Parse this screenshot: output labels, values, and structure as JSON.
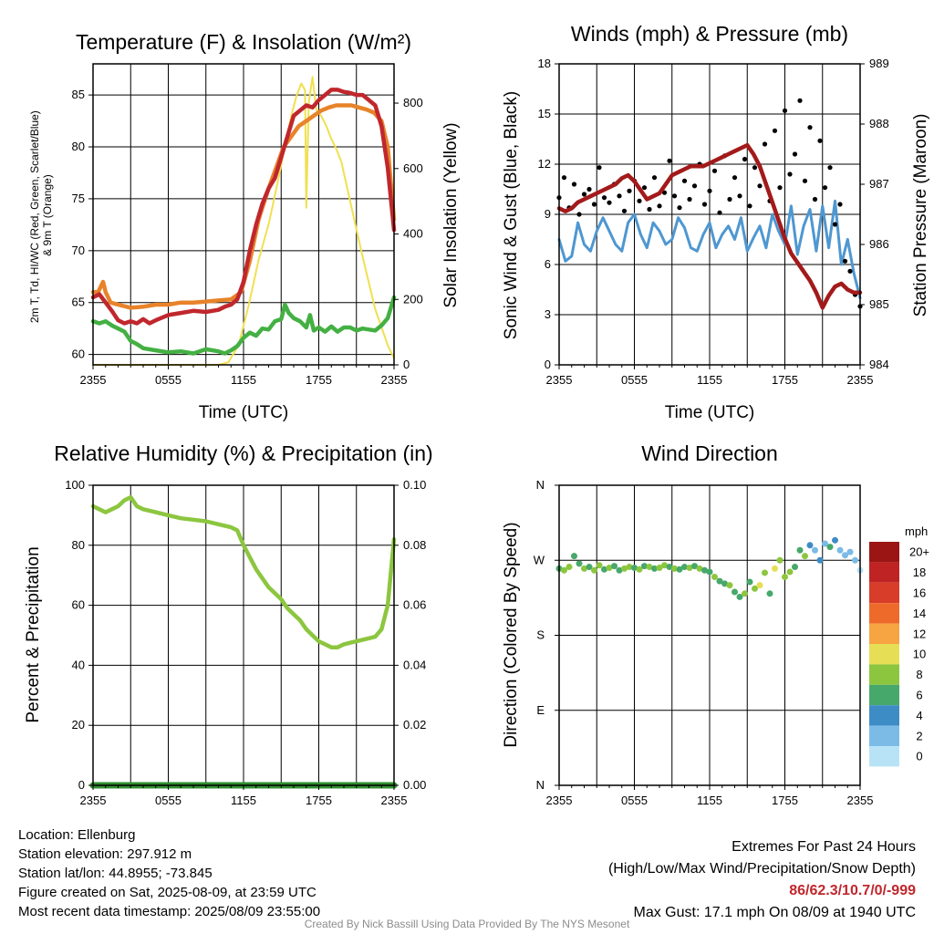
{
  "chart_data": [
    {
      "id": "temp",
      "type": "line",
      "title": "Temperature (F) & Insolation (W/m²)",
      "xlabel": "Time (UTC)",
      "ylabel_lines": [
        "2m T, Td, HI/WC (Red, Green, Scarlet/Blue)",
        "& 9m T (Orange)"
      ],
      "y2label": "Solar Insolation (Yellow)",
      "x_ticks": [
        "2355",
        "0555",
        "1155",
        "1755",
        "2355"
      ],
      "ylim": [
        59,
        88
      ],
      "y_ticks": [
        60,
        65,
        70,
        75,
        80,
        85
      ],
      "y2lim": [
        0,
        920
      ],
      "y2_ticks": [
        0,
        200,
        400,
        600,
        800
      ],
      "grid": true,
      "series": [
        {
          "color": "#f0e050",
          "axis": "right",
          "x": [
            0,
            2,
            4,
            6,
            8,
            10,
            10.8,
            11.6,
            12.4,
            13.2,
            14,
            14.4,
            15,
            15.4,
            15.8,
            16.2,
            16.6,
            16.9,
            17,
            17.2,
            17.5,
            17.8,
            18.2,
            18.6,
            19,
            19.4,
            19.8,
            20.5,
            21.5,
            22.5,
            23.5,
            24
          ],
          "values": [
            0,
            0,
            0,
            0,
            0,
            0,
            8,
            60,
            180,
            320,
            430,
            500,
            610,
            690,
            760,
            820,
            860,
            840,
            480,
            800,
            880,
            780,
            760,
            730,
            690,
            660,
            620,
            500,
            330,
            170,
            60,
            20
          ]
        },
        {
          "color": "#e8832a",
          "axis": "left",
          "x": [
            0,
            0.4,
            0.8,
            1,
            1.4,
            2,
            3,
            4,
            5,
            6,
            7,
            8,
            9,
            10,
            11,
            11.8,
            12.5,
            13.2,
            14,
            14.6,
            15.2,
            15.8,
            16.4,
            17,
            17.6,
            18.2,
            18.8,
            19.4,
            20,
            20.6,
            21.2,
            21.8,
            22.4,
            23,
            23.5,
            24
          ],
          "values": [
            66,
            66,
            67,
            66,
            65,
            64.8,
            64.5,
            64.6,
            64.8,
            64.8,
            65,
            65,
            65.1,
            65.2,
            65.3,
            66,
            69,
            73,
            76,
            78,
            80,
            81,
            82,
            82.5,
            83,
            83.5,
            83.8,
            84,
            84,
            84,
            83.8,
            83.6,
            83.3,
            82.5,
            80,
            73
          ]
        },
        {
          "color": "#c0272d",
          "axis": "left",
          "x": [
            0,
            0.5,
            1,
            1.5,
            2,
            2.5,
            3,
            3.5,
            4,
            4.5,
            5,
            6,
            7,
            8,
            9,
            10,
            10.5,
            11,
            11.5,
            12,
            12.5,
            13,
            13.5,
            14,
            14.5,
            15,
            15.5,
            16,
            16.5,
            17,
            17.5,
            18,
            18.5,
            19,
            19.5,
            20,
            20.5,
            21,
            21.5,
            22,
            22.5,
            23,
            23.5,
            24
          ],
          "values": [
            65.5,
            65.8,
            65,
            64.2,
            63.3,
            63,
            63.2,
            63,
            63.4,
            63,
            63.3,
            63.8,
            64,
            64.2,
            64.1,
            64.3,
            64.6,
            64.8,
            65.3,
            67,
            70,
            72.5,
            74.5,
            76,
            77,
            79,
            81,
            83,
            83.5,
            84,
            83.8,
            84.5,
            85,
            85.5,
            85.5,
            85.3,
            85.2,
            85,
            85,
            84.5,
            84,
            82,
            78,
            72
          ]
        },
        {
          "color": "#44b043",
          "axis": "left",
          "x": [
            0,
            0.5,
            1,
            1.5,
            2,
            2.5,
            3,
            3.5,
            4,
            5,
            6,
            7,
            8,
            9,
            10,
            10.5,
            11,
            11.5,
            12,
            12.5,
            13,
            13.5,
            14,
            14.5,
            15,
            15.3,
            15.6,
            16,
            16.5,
            17,
            17.3,
            17.6,
            18,
            18.5,
            19,
            19.5,
            20,
            20.5,
            21,
            21.5,
            22,
            22.5,
            23,
            23.5,
            24
          ],
          "values": [
            63.2,
            63,
            63.2,
            62.8,
            62.5,
            62.2,
            61.3,
            61,
            60.6,
            60.4,
            60.2,
            60.3,
            60.1,
            60.5,
            60.3,
            60.1,
            60.4,
            60.8,
            61.6,
            62.1,
            61.8,
            62.5,
            62.4,
            63.2,
            63.4,
            64.8,
            64,
            63.5,
            63.2,
            62.6,
            63.8,
            62.3,
            62.6,
            62.2,
            62.7,
            62.2,
            62.6,
            62.6,
            62.3,
            62.5,
            62.4,
            62.3,
            62.8,
            63.5,
            65.5
          ]
        }
      ]
    },
    {
      "id": "wind",
      "type": "line",
      "title": "Winds (mph) & Pressure (mb)",
      "xlabel": "Time (UTC)",
      "ylabel": "Sonic Wind & Gust (Blue, Black)",
      "y2label": "Station Pressure (Maroon)",
      "x_ticks": [
        "2355",
        "0555",
        "1155",
        "1755",
        "2355"
      ],
      "ylim": [
        0,
        18
      ],
      "y_ticks": [
        0,
        3,
        6,
        9,
        12,
        15,
        18
      ],
      "y2lim": [
        984,
        989
      ],
      "y2_ticks": [
        984,
        985,
        986,
        987,
        988,
        989
      ],
      "grid": true,
      "series": [
        {
          "color": "#4e97d1",
          "axis": "left",
          "x": [
            0,
            0.5,
            1,
            1.5,
            2,
            2.5,
            3,
            3.5,
            4,
            4.5,
            5,
            5.5,
            6,
            6.5,
            7,
            7.5,
            8,
            8.5,
            9,
            9.5,
            10,
            10.5,
            11,
            11.5,
            12,
            12.5,
            13,
            13.5,
            14,
            14.5,
            15,
            15.5,
            16,
            16.5,
            17,
            17.5,
            18,
            18.5,
            19,
            19.5,
            20,
            20.5,
            21,
            21.5,
            22,
            22.5,
            23,
            23.5,
            24
          ],
          "values": [
            7.5,
            6.2,
            6.5,
            8.5,
            7.2,
            6.8,
            8,
            8.8,
            8,
            7.2,
            6.8,
            8.5,
            9,
            7.8,
            7,
            8.5,
            8,
            7.2,
            7.5,
            8.8,
            8.2,
            7,
            6.8,
            7.8,
            8.5,
            7,
            7.8,
            8.3,
            7.5,
            8.8,
            6.8,
            7.6,
            8.3,
            7,
            9,
            8,
            7.2,
            9.5,
            6.6,
            8.3,
            9.3,
            6.8,
            9.5,
            7,
            9.8,
            6,
            7.5,
            5.5,
            4
          ]
        },
        {
          "color": "#000000",
          "axis": "left",
          "kind": "points",
          "x": [
            0,
            0.4,
            0.8,
            1.2,
            1.6,
            2,
            2.4,
            2.8,
            3.2,
            3.6,
            4,
            4.4,
            4.8,
            5.2,
            5.6,
            6,
            6.4,
            6.8,
            7.2,
            7.6,
            8,
            8.4,
            8.8,
            9.2,
            9.6,
            10,
            10.4,
            10.8,
            11.2,
            11.6,
            12,
            12.4,
            12.8,
            13.2,
            13.6,
            14,
            14.4,
            14.8,
            15.2,
            15.6,
            16,
            16.4,
            16.8,
            17.2,
            17.6,
            18,
            18.4,
            18.8,
            19.2,
            19.6,
            20,
            20.4,
            20.8,
            21.2,
            21.6,
            22,
            22.4,
            22.8,
            23.2,
            23.6,
            24
          ],
          "values": [
            10,
            11.2,
            9.4,
            10.8,
            9,
            10.2,
            10.5,
            9.6,
            11.8,
            10,
            9.7,
            10.8,
            10.1,
            9.2,
            10.4,
            11,
            9.8,
            10.6,
            9.3,
            11.2,
            9.5,
            10.3,
            12.2,
            10.1,
            9.4,
            11,
            9.9,
            10.7,
            12,
            9.6,
            10.4,
            11.6,
            9.1,
            12.5,
            9.9,
            11.2,
            10.1,
            12.3,
            9.5,
            11.8,
            10.7,
            13.2,
            9.8,
            14,
            10.6,
            15.2,
            11.4,
            12.6,
            15.8,
            11,
            14.2,
            9.9,
            13.4,
            10.6,
            11.8,
            8.4,
            9.6,
            6.2,
            5.6,
            4.2,
            3.5
          ]
        },
        {
          "color": "#a31a1a",
          "axis": "right",
          "x": [
            0,
            0.5,
            1,
            1.5,
            2,
            2.5,
            3,
            3.5,
            4,
            4.5,
            5,
            5.5,
            6,
            6.5,
            7,
            7.5,
            8,
            8.5,
            9,
            9.5,
            10,
            10.5,
            11,
            11.5,
            12,
            12.5,
            13,
            13.5,
            14,
            14.5,
            15,
            15.5,
            16,
            16.5,
            17,
            17.5,
            18,
            18.5,
            19,
            19.5,
            20,
            20.5,
            21,
            21.5,
            22,
            22.5,
            23,
            23.5,
            24
          ],
          "values": [
            986.6,
            986.55,
            986.6,
            986.7,
            986.75,
            986.8,
            986.85,
            986.9,
            986.95,
            987.0,
            987.1,
            987.15,
            987.05,
            986.9,
            986.75,
            986.8,
            986.85,
            987.0,
            987.15,
            987.2,
            987.25,
            987.3,
            987.3,
            987.3,
            987.35,
            987.4,
            987.45,
            987.5,
            987.55,
            987.6,
            987.65,
            987.5,
            987.3,
            987.0,
            986.7,
            986.4,
            986.1,
            985.85,
            985.7,
            985.55,
            985.4,
            985.2,
            984.95,
            985.15,
            985.3,
            985.35,
            985.25,
            985.2,
            985.2
          ]
        }
      ]
    },
    {
      "id": "rh",
      "type": "line",
      "title": "Relative Humidity (%) & Precipitation (in)",
      "ylabel": "Percent & Precipitation",
      "x_ticks": [
        "2355",
        "0555",
        "1155",
        "1755",
        "2355"
      ],
      "ylim": [
        0,
        100
      ],
      "y_ticks": [
        0,
        20,
        40,
        60,
        80,
        100
      ],
      "y2lim": [
        0,
        0.1
      ],
      "y2_ticks": [
        "0.00",
        "0.02",
        "0.04",
        "0.06",
        "0.08",
        "0.10"
      ],
      "grid": true,
      "series": [
        {
          "color": "#8cc63f",
          "axis": "left",
          "x": [
            0,
            0.5,
            1,
            1.5,
            2,
            2.5,
            3,
            3.5,
            4,
            5,
            6,
            7,
            8,
            9,
            10,
            10.5,
            11,
            11.5,
            12,
            12.5,
            13,
            13.5,
            14,
            14.5,
            15,
            15.5,
            16,
            16.5,
            17,
            17.5,
            18,
            18.5,
            19,
            19.5,
            20,
            20.5,
            21,
            21.5,
            22,
            22.5,
            23,
            23.5,
            24
          ],
          "values": [
            93,
            92,
            91,
            92,
            93,
            95,
            96,
            93,
            92,
            91,
            90,
            89,
            88.5,
            88,
            87,
            86.5,
            86,
            85,
            80,
            76,
            72,
            69,
            66,
            64,
            62,
            59,
            57,
            55,
            52,
            50,
            48,
            47,
            46,
            46,
            47,
            47.5,
            48,
            48.5,
            49,
            49.5,
            52,
            60,
            82
          ]
        },
        {
          "color": "#2f8f2f",
          "axis": "right",
          "x": [
            0,
            24
          ],
          "values": [
            0,
            0
          ]
        }
      ]
    },
    {
      "id": "wdir",
      "type": "scatter",
      "title": "Wind Direction",
      "ylabel": "Direction (Colored By Speed)",
      "x_ticks": [
        "2355",
        "0555",
        "1155",
        "1755",
        "2355"
      ],
      "y_tick_labels": [
        "N",
        "E",
        "S",
        "W",
        "N"
      ],
      "ylim": [
        0,
        360
      ],
      "grid": true,
      "colorbar_unit": "mph",
      "colorbar": [
        {
          "label": "0",
          "color": "#b8e3f6"
        },
        {
          "label": "2",
          "color": "#7bbbe6"
        },
        {
          "label": "4",
          "color": "#3e8cc6"
        },
        {
          "label": "6",
          "color": "#47a86b"
        },
        {
          "label": "8",
          "color": "#8cc63f"
        },
        {
          "label": "10",
          "color": "#e6de54"
        },
        {
          "label": "12",
          "color": "#f7a443"
        },
        {
          "label": "14",
          "color": "#ee6a2b"
        },
        {
          "label": "16",
          "color": "#d83d2a"
        },
        {
          "label": "18",
          "color": "#c02323"
        },
        {
          "label": "20+",
          "color": "#9b1515"
        }
      ],
      "x": [
        0,
        0.4,
        0.8,
        1.2,
        1.6,
        2,
        2.4,
        2.8,
        3.2,
        3.6,
        4,
        4.4,
        4.8,
        5.2,
        5.6,
        6,
        6.4,
        6.8,
        7.2,
        7.6,
        8,
        8.4,
        8.8,
        9.2,
        9.6,
        10,
        10.4,
        10.8,
        11.2,
        11.6,
        12,
        12.4,
        12.8,
        13.2,
        13.6,
        14,
        14.4,
        14.8,
        15.2,
        15.6,
        16,
        16.4,
        16.8,
        17.2,
        17.6,
        18,
        18.4,
        18.8,
        19.2,
        19.6,
        20,
        20.4,
        20.8,
        21.2,
        21.6,
        22,
        22.4,
        22.8,
        23.2,
        23.6,
        24
      ],
      "values": [
        260,
        258,
        262,
        275,
        266,
        260,
        262,
        258,
        264,
        259,
        261,
        263,
        258,
        260,
        262,
        261,
        259,
        263,
        262,
        260,
        261,
        264,
        262,
        260,
        259,
        262,
        261,
        263,
        260,
        258,
        256,
        250,
        245,
        242,
        240,
        232,
        226,
        230,
        244,
        236,
        240,
        255,
        230,
        260,
        270,
        250,
        256,
        262,
        282,
        275,
        288,
        282,
        270,
        290,
        286,
        294,
        282,
        276,
        280,
        270,
        258
      ],
      "speed": [
        7,
        9,
        8,
        6,
        7,
        8,
        7,
        9,
        8,
        7,
        8,
        6,
        7,
        8,
        9,
        7,
        8,
        7,
        8,
        6,
        8,
        9,
        7,
        8,
        6,
        7,
        8,
        7,
        8,
        6,
        7,
        8,
        6,
        7,
        8,
        7,
        6,
        8,
        7,
        8,
        10,
        8,
        7,
        11,
        8,
        9,
        8,
        7,
        6,
        8,
        5,
        3,
        4,
        3,
        6,
        4,
        2,
        3,
        2,
        2,
        1
      ]
    }
  ],
  "footer": {
    "location": "Location: Ellenburg",
    "elevation": "Station elevation: 297.912 m",
    "latlon": "Station lat/lon: 44.8955; -73.845",
    "created": "Figure created on Sat, 2025-08-09, at 23:59 UTC",
    "recent": "Most recent data timestamp: 2025/08/09 23:55:00"
  },
  "extremes": {
    "title": "Extremes For Past 24 Hours",
    "subtitle": "(High/Low/Max Wind/Precipitation/Snow Depth)",
    "values": "86/62.3/10.7/0/-999",
    "values_color": "#c0272d",
    "gust": "Max Gust: 17.1 mph On 08/09 at 1940 UTC"
  },
  "credit": "Created By Nick Bassill Using Data Provided By The NYS Mesonet"
}
